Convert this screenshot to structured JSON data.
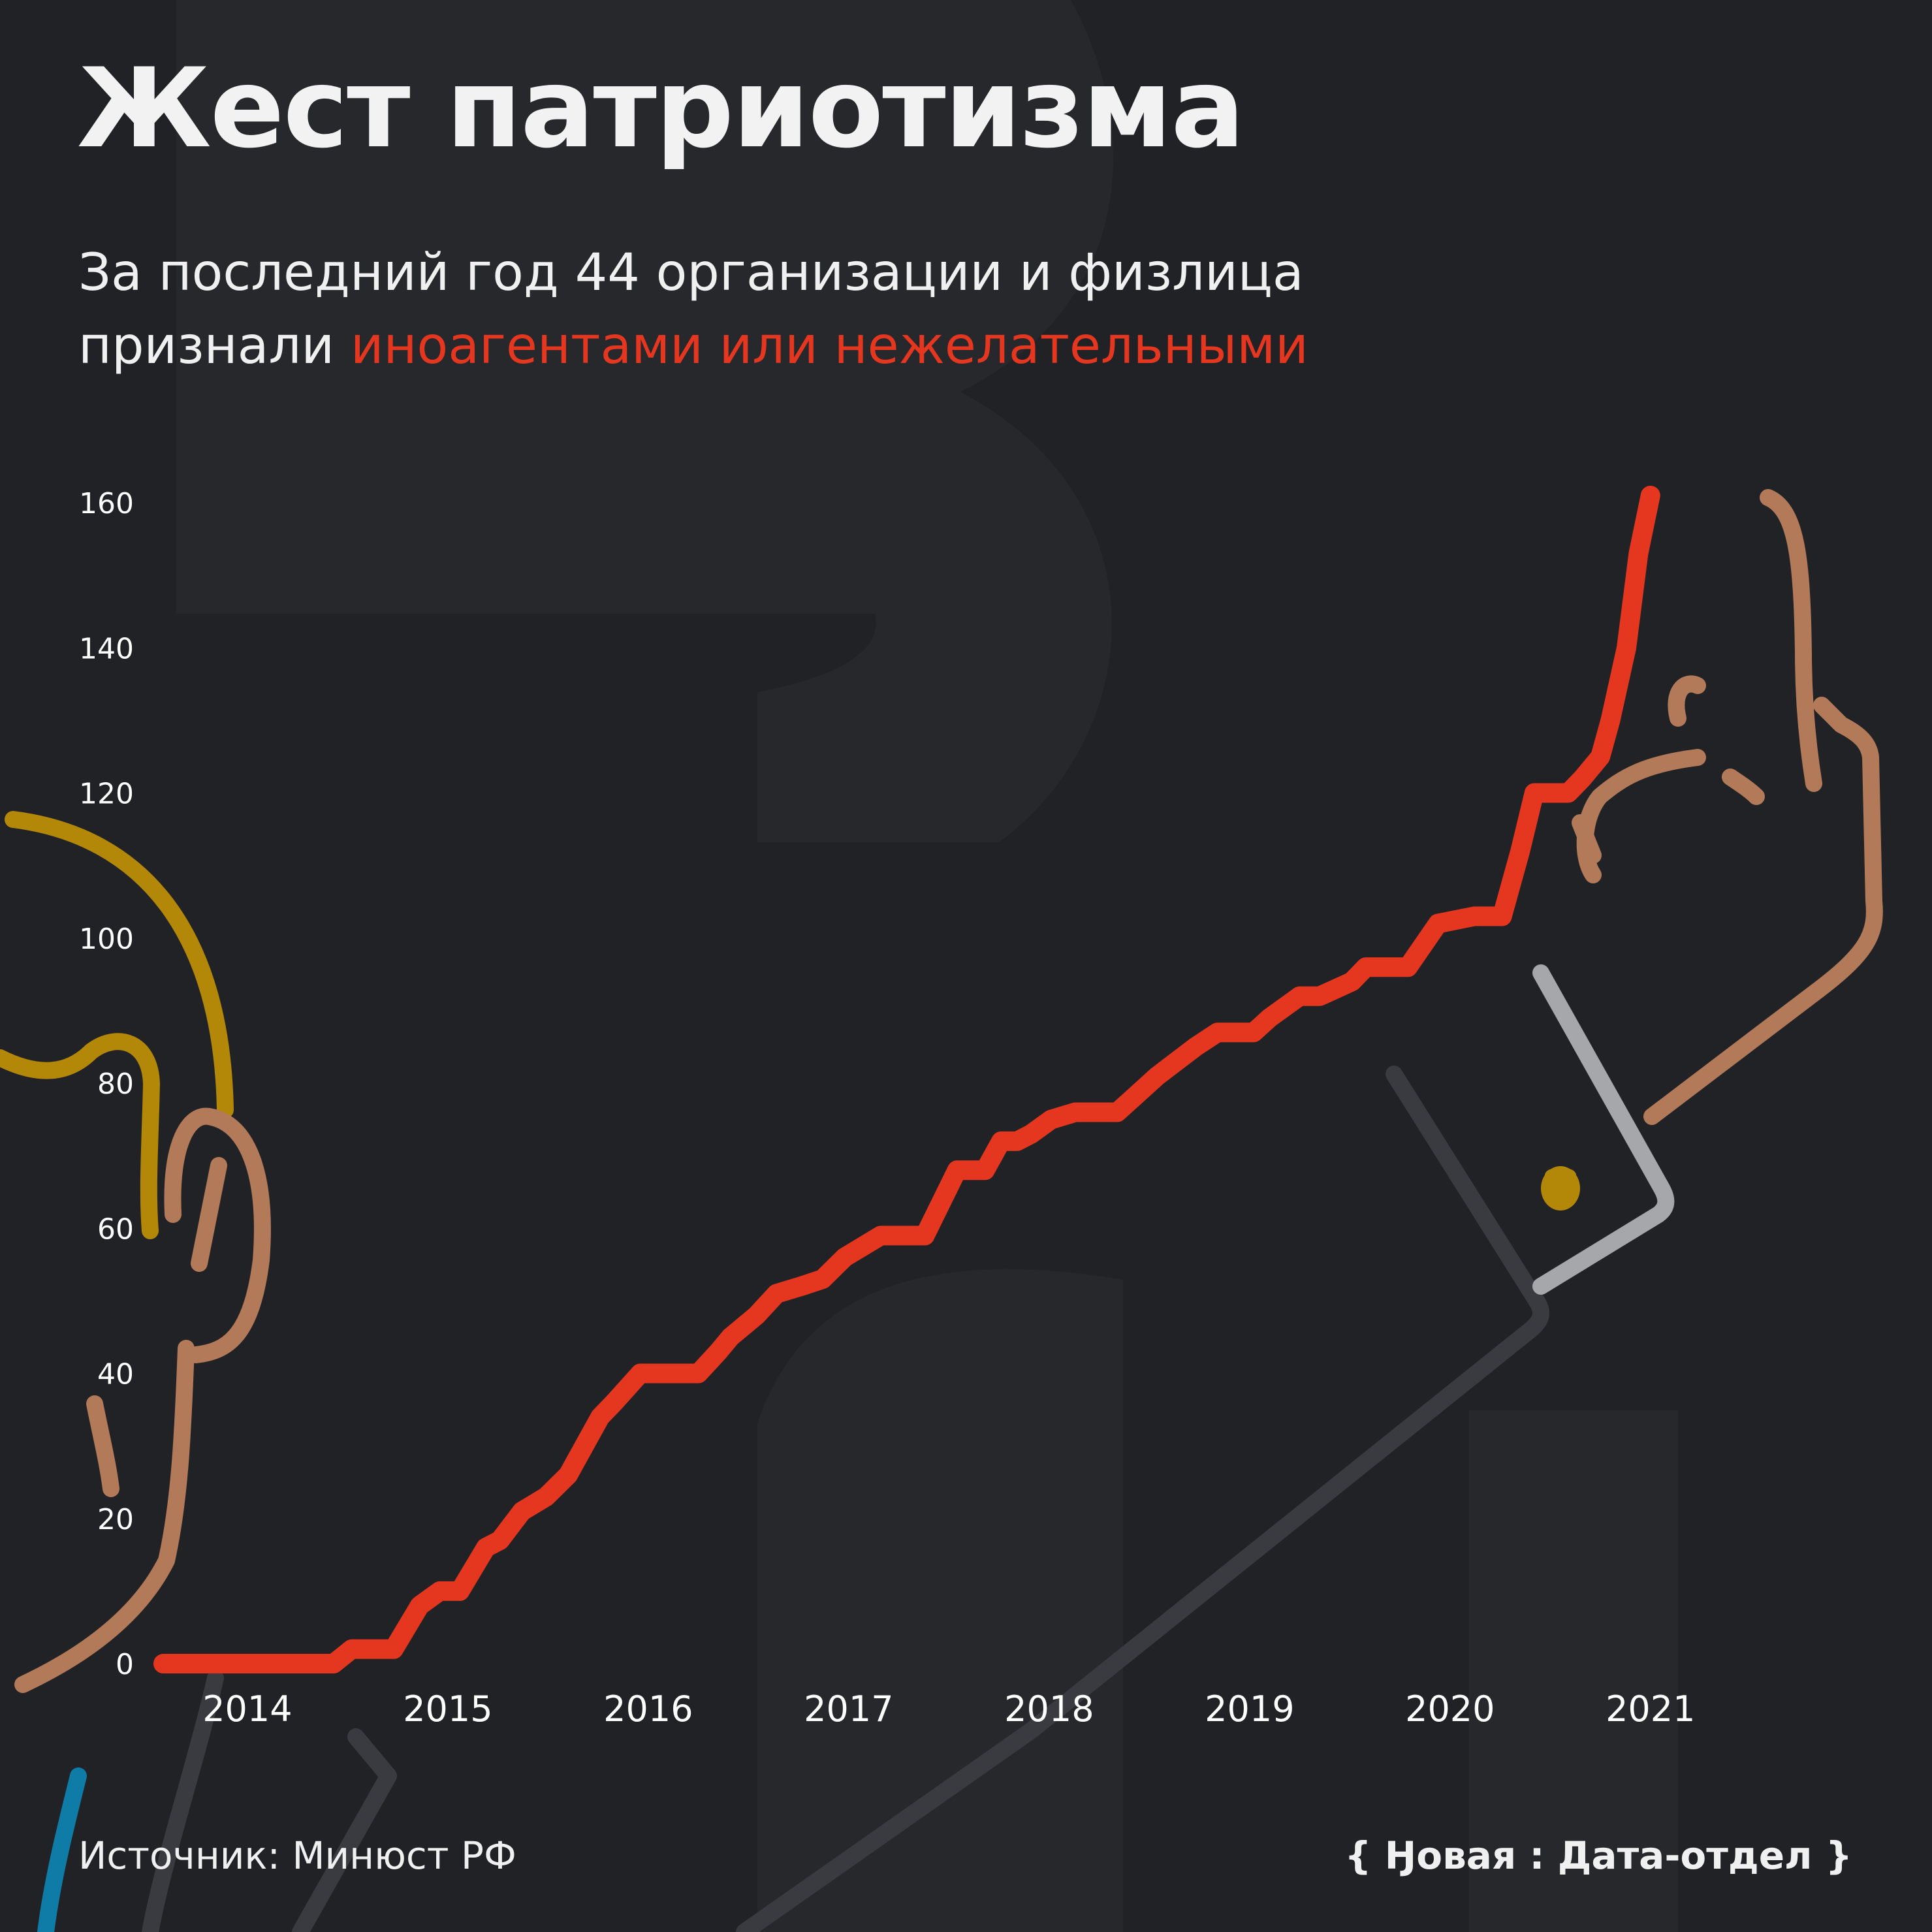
{
  "chart_data": {
    "type": "line",
    "title": "Жест патриотизма",
    "subtitle_line1": "За последний год 44 организации и физлица",
    "subtitle_line2_prefix": "признали",
    "subtitle_highlight": "иноагентами или нежелательными",
    "source": "Источник: Минюст РФ",
    "brand": "{ Ӈовая : Дата-отдел }",
    "ylim": [
      0,
      160
    ],
    "y_ticks": [
      0,
      20,
      40,
      60,
      80,
      100,
      120,
      140,
      160
    ],
    "x_range": [
      2013.58,
      2021.6
    ],
    "x_ticks": [
      2014,
      2015,
      2016,
      2017,
      2018,
      2019,
      2020,
      2021
    ],
    "x_tick_labels": [
      "2014",
      "2015",
      "2016",
      "2017",
      "2018",
      "2019",
      "2020",
      "2021"
    ],
    "grid": false,
    "series": [
      {
        "color": "#e5361f",
        "points": [
          [
            2013.58,
            0
          ],
          [
            2014.43,
            0
          ],
          [
            2014.52,
            2
          ],
          [
            2014.73,
            2
          ],
          [
            2014.86,
            8
          ],
          [
            2014.96,
            10
          ],
          [
            2015.06,
            10
          ],
          [
            2015.19,
            16
          ],
          [
            2015.26,
            17
          ],
          [
            2015.37,
            21
          ],
          [
            2015.49,
            23
          ],
          [
            2015.6,
            26
          ],
          [
            2015.7,
            31
          ],
          [
            2015.76,
            34
          ],
          [
            2015.83,
            36
          ],
          [
            2015.96,
            40
          ],
          [
            2016.25,
            40
          ],
          [
            2016.35,
            43
          ],
          [
            2016.41,
            45
          ],
          [
            2016.54,
            48
          ],
          [
            2016.64,
            51
          ],
          [
            2016.76,
            52
          ],
          [
            2016.87,
            53
          ],
          [
            2016.98,
            56
          ],
          [
            2017.16,
            59
          ],
          [
            2017.38,
            59
          ],
          [
            2017.54,
            68
          ],
          [
            2017.68,
            68
          ],
          [
            2017.76,
            72
          ],
          [
            2017.84,
            72
          ],
          [
            2017.91,
            73
          ],
          [
            2018.01,
            75
          ],
          [
            2018.13,
            76
          ],
          [
            2018.34,
            76
          ],
          [
            2018.42,
            78
          ],
          [
            2018.54,
            81
          ],
          [
            2018.73,
            85
          ],
          [
            2018.84,
            87
          ],
          [
            2019.02,
            87
          ],
          [
            2019.1,
            89
          ],
          [
            2019.25,
            92
          ],
          [
            2019.35,
            92
          ],
          [
            2019.51,
            94
          ],
          [
            2019.58,
            96
          ],
          [
            2019.79,
            96
          ],
          [
            2019.94,
            102
          ],
          [
            2020.12,
            103
          ],
          [
            2020.26,
            103
          ],
          [
            2020.35,
            112
          ],
          [
            2020.42,
            120
          ],
          [
            2020.59,
            120
          ],
          [
            2020.66,
            122
          ],
          [
            2020.75,
            125
          ],
          [
            2020.8,
            130
          ],
          [
            2020.88,
            140
          ],
          [
            2020.94,
            153
          ],
          [
            2021.0,
            161
          ]
        ]
      }
    ]
  }
}
